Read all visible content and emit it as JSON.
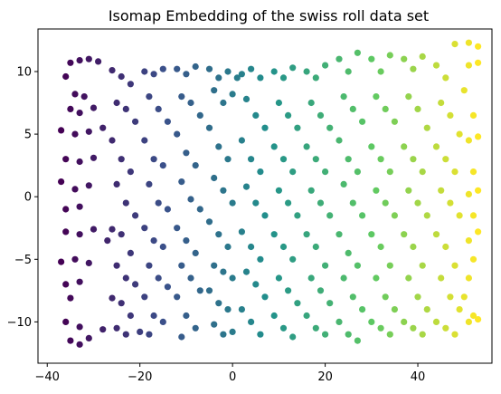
{
  "chart_data": {
    "type": "scatter",
    "title": "Isomap Embedding of the swiss roll data set",
    "xlabel": "",
    "ylabel": "",
    "xlim": [
      -42,
      56
    ],
    "ylim": [
      -13.3,
      13.4
    ],
    "xticks": [
      -40,
      -20,
      0,
      20,
      40
    ],
    "xtick_labels": [
      "−40",
      "−20",
      "0",
      "20",
      "40"
    ],
    "yticks": [
      -10,
      -5,
      0,
      5,
      10
    ],
    "ytick_labels": [
      "−10",
      "−5",
      "0",
      "5",
      "10"
    ],
    "grid": false,
    "legend": "none",
    "colormap": "viridis",
    "color_by": "x",
    "marker_color_range": [
      "#440154",
      "#3b528b",
      "#21918c",
      "#5ec962",
      "#fde725"
    ],
    "series": [
      {
        "points": [
          [
            -35,
            10.7
          ],
          [
            -33,
            10.9
          ],
          [
            -31,
            11.0
          ],
          [
            -29,
            10.8
          ],
          [
            -36,
            9.6
          ],
          [
            -34,
            8.2
          ],
          [
            -32,
            8.0
          ],
          [
            -35,
            7.0
          ],
          [
            -33,
            6.7
          ],
          [
            -30,
            7.1
          ],
          [
            -37,
            5.3
          ],
          [
            -34,
            5.0
          ],
          [
            -31,
            5.2
          ],
          [
            -36,
            3.0
          ],
          [
            -33,
            2.8
          ],
          [
            -30,
            3.1
          ],
          [
            -37,
            1.2
          ],
          [
            -34,
            0.6
          ],
          [
            -31,
            0.9
          ],
          [
            -36,
            -1.0
          ],
          [
            -33,
            -0.8
          ],
          [
            -36,
            -2.8
          ],
          [
            -33,
            -3.0
          ],
          [
            -30,
            -2.6
          ],
          [
            -37,
            -5.2
          ],
          [
            -34,
            -5.0
          ],
          [
            -31,
            -5.3
          ],
          [
            -36,
            -7.0
          ],
          [
            -33,
            -6.8
          ],
          [
            -35,
            -8.1
          ],
          [
            -36,
            -10.0
          ],
          [
            -33,
            -10.4
          ],
          [
            -35,
            -11.5
          ],
          [
            -33,
            -11.8
          ],
          [
            -31,
            -11.3
          ],
          [
            -28,
            -10.6
          ],
          [
            -28,
            5.5
          ],
          [
            -27,
            -3.5
          ],
          [
            -26,
            10.1
          ],
          [
            -24,
            9.6
          ],
          [
            -22,
            9.0
          ],
          [
            -25,
            7.5
          ],
          [
            -23,
            7.0
          ],
          [
            -21,
            6.0
          ],
          [
            -26,
            4.5
          ],
          [
            -24,
            3.0
          ],
          [
            -22,
            2.0
          ],
          [
            -25,
            1.0
          ],
          [
            -23,
            -0.5
          ],
          [
            -21,
            -1.5
          ],
          [
            -26,
            -2.6
          ],
          [
            -24,
            -3.0
          ],
          [
            -22,
            -4.5
          ],
          [
            -25,
            -5.5
          ],
          [
            -23,
            -6.5
          ],
          [
            -21,
            -7.0
          ],
          [
            -26,
            -8.1
          ],
          [
            -24,
            -8.5
          ],
          [
            -22,
            -9.5
          ],
          [
            -25,
            -10.5
          ],
          [
            -23,
            -11.0
          ],
          [
            -20,
            -10.8
          ],
          [
            -19,
            10.0
          ],
          [
            -17,
            9.8
          ],
          [
            -15,
            10.2
          ],
          [
            -18,
            8.0
          ],
          [
            -16,
            7.0
          ],
          [
            -14,
            6.0
          ],
          [
            -19,
            4.5
          ],
          [
            -17,
            3.0
          ],
          [
            -15,
            2.5
          ],
          [
            -18,
            1.0
          ],
          [
            -16,
            -0.5
          ],
          [
            -14,
            -1.0
          ],
          [
            -19,
            -2.5
          ],
          [
            -17,
            -3.5
          ],
          [
            -15,
            -4.0
          ],
          [
            -18,
            -5.5
          ],
          [
            -16,
            -6.5
          ],
          [
            -14,
            -7.2
          ],
          [
            -19,
            -8.0
          ],
          [
            -17,
            -9.5
          ],
          [
            -15,
            -10.0
          ],
          [
            -18,
            -11.0
          ],
          [
            -12,
            10.2
          ],
          [
            -10,
            9.8
          ],
          [
            -8,
            10.4
          ],
          [
            -11,
            8.0
          ],
          [
            -9,
            7.5
          ],
          [
            -7,
            6.5
          ],
          [
            -12,
            5.0
          ],
          [
            -10,
            3.5
          ],
          [
            -8,
            2.5
          ],
          [
            -11,
            1.2
          ],
          [
            -9,
            -0.2
          ],
          [
            -7,
            -1.0
          ],
          [
            -12,
            -2.5
          ],
          [
            -10,
            -3.5
          ],
          [
            -8,
            -4.5
          ],
          [
            -11,
            -5.5
          ],
          [
            -9,
            -6.5
          ],
          [
            -7,
            -7.5
          ],
          [
            -12,
            -8.0
          ],
          [
            -10,
            -9.5
          ],
          [
            -8,
            -10.5
          ],
          [
            -11,
            -11.2
          ],
          [
            -5,
            10.2
          ],
          [
            -3,
            9.5
          ],
          [
            -1,
            10.0
          ],
          [
            -4,
            8.5
          ],
          [
            -2,
            7.5
          ],
          [
            0,
            8.2
          ],
          [
            1,
            9.5
          ],
          [
            -5,
            5.5
          ],
          [
            -3,
            4.0
          ],
          [
            -1,
            3.0
          ],
          [
            -4,
            1.5
          ],
          [
            -2,
            0.5
          ],
          [
            0,
            -0.5
          ],
          [
            -5,
            -2.0
          ],
          [
            -3,
            -3.0
          ],
          [
            -1,
            -4.0
          ],
          [
            -4,
            -5.5
          ],
          [
            -2,
            -6.0
          ],
          [
            0,
            -6.5
          ],
          [
            -5,
            -7.5
          ],
          [
            -3,
            -8.5
          ],
          [
            -1,
            -9.0
          ],
          [
            -4,
            -10.2
          ],
          [
            -2,
            -11.0
          ],
          [
            0,
            -10.8
          ],
          [
            2,
            9.8
          ],
          [
            4,
            10.2
          ],
          [
            6,
            9.5
          ],
          [
            3,
            7.8
          ],
          [
            5,
            6.5
          ],
          [
            7,
            5.5
          ],
          [
            2,
            4.5
          ],
          [
            4,
            3.0
          ],
          [
            6,
            2.0
          ],
          [
            3,
            0.8
          ],
          [
            5,
            -0.5
          ],
          [
            7,
            -1.5
          ],
          [
            2,
            -2.8
          ],
          [
            4,
            -4.0
          ],
          [
            6,
            -5.0
          ],
          [
            3,
            -6.0
          ],
          [
            5,
            -7.0
          ],
          [
            7,
            -8.0
          ],
          [
            2,
            -9.0
          ],
          [
            4,
            -10.0
          ],
          [
            6,
            -11.0
          ],
          [
            9,
            10.0
          ],
          [
            11,
            9.5
          ],
          [
            13,
            10.3
          ],
          [
            10,
            7.5
          ],
          [
            12,
            6.5
          ],
          [
            14,
            5.5
          ],
          [
            9,
            4.0
          ],
          [
            11,
            3.0
          ],
          [
            13,
            2.0
          ],
          [
            10,
            0.5
          ],
          [
            12,
            -0.5
          ],
          [
            14,
            -1.5
          ],
          [
            9,
            -3.0
          ],
          [
            11,
            -4.0
          ],
          [
            13,
            -5.0
          ],
          [
            10,
            -6.5
          ],
          [
            12,
            -7.5
          ],
          [
            14,
            -8.5
          ],
          [
            9,
            -9.5
          ],
          [
            11,
            -10.5
          ],
          [
            13,
            -11.2
          ],
          [
            16,
            10.0
          ],
          [
            18,
            9.5
          ],
          [
            20,
            10.5
          ],
          [
            17,
            7.5
          ],
          [
            19,
            6.5
          ],
          [
            21,
            5.5
          ],
          [
            16,
            4.0
          ],
          [
            18,
            3.0
          ],
          [
            20,
            2.0
          ],
          [
            17,
            0.5
          ],
          [
            19,
            -0.5
          ],
          [
            21,
            -1.5
          ],
          [
            16,
            -3.0
          ],
          [
            18,
            -4.0
          ],
          [
            20,
            -5.5
          ],
          [
            17,
            -6.5
          ],
          [
            19,
            -7.5
          ],
          [
            21,
            -8.5
          ],
          [
            16,
            -9.5
          ],
          [
            18,
            -10.5
          ],
          [
            20,
            -11.0
          ],
          [
            23,
            11.0
          ],
          [
            25,
            10.0
          ],
          [
            27,
            11.5
          ],
          [
            24,
            8.0
          ],
          [
            26,
            7.0
          ],
          [
            28,
            6.0
          ],
          [
            23,
            4.5
          ],
          [
            25,
            3.0
          ],
          [
            27,
            2.0
          ],
          [
            24,
            1.0
          ],
          [
            26,
            -0.5
          ],
          [
            28,
            -1.5
          ],
          [
            23,
            -3.0
          ],
          [
            25,
            -4.5
          ],
          [
            27,
            -5.5
          ],
          [
            24,
            -6.5
          ],
          [
            26,
            -8.0
          ],
          [
            28,
            -9.0
          ],
          [
            23,
            -10.0
          ],
          [
            25,
            -11.0
          ],
          [
            27,
            -11.5
          ],
          [
            30,
            11.0
          ],
          [
            32,
            10.0
          ],
          [
            34,
            11.3
          ],
          [
            31,
            8.0
          ],
          [
            33,
            7.0
          ],
          [
            35,
            6.0
          ],
          [
            30,
            4.0
          ],
          [
            32,
            3.0
          ],
          [
            34,
            2.0
          ],
          [
            31,
            0.5
          ],
          [
            33,
            -0.5
          ],
          [
            35,
            -1.5
          ],
          [
            30,
            -3.0
          ],
          [
            32,
            -4.0
          ],
          [
            34,
            -5.5
          ],
          [
            31,
            -6.5
          ],
          [
            33,
            -8.0
          ],
          [
            35,
            -9.0
          ],
          [
            30,
            -10.0
          ],
          [
            32,
            -10.5
          ],
          [
            34,
            -11.0
          ],
          [
            37,
            11.0
          ],
          [
            39,
            10.2
          ],
          [
            41,
            11.2
          ],
          [
            38,
            8.0
          ],
          [
            40,
            7.0
          ],
          [
            42,
            5.5
          ],
          [
            37,
            4.0
          ],
          [
            39,
            3.0
          ],
          [
            41,
            2.0
          ],
          [
            38,
            0.5
          ],
          [
            40,
            -0.5
          ],
          [
            42,
            -1.5
          ],
          [
            37,
            -3.0
          ],
          [
            39,
            -4.0
          ],
          [
            41,
            -5.5
          ],
          [
            38,
            -6.5
          ],
          [
            40,
            -8.0
          ],
          [
            42,
            -9.0
          ],
          [
            37,
            -10.0
          ],
          [
            39,
            -10.5
          ],
          [
            41,
            -11.0
          ],
          [
            44,
            10.5
          ],
          [
            46,
            9.5
          ],
          [
            48,
            12.2
          ],
          [
            45,
            7.5
          ],
          [
            47,
            6.5
          ],
          [
            49,
            5.0
          ],
          [
            44,
            4.0
          ],
          [
            46,
            3.0
          ],
          [
            48,
            2.0
          ],
          [
            45,
            0.5
          ],
          [
            47,
            -0.5
          ],
          [
            49,
            -1.5
          ],
          [
            44,
            -3.0
          ],
          [
            46,
            -4.0
          ],
          [
            48,
            -5.5
          ],
          [
            45,
            -6.5
          ],
          [
            47,
            -8.0
          ],
          [
            49,
            -9.0
          ],
          [
            44,
            -10.0
          ],
          [
            46,
            -10.5
          ],
          [
            48,
            -11.0
          ],
          [
            51,
            12.3
          ],
          [
            53,
            12.0
          ],
          [
            51,
            10.5
          ],
          [
            53,
            10.7
          ],
          [
            50,
            8.5
          ],
          [
            52,
            6.5
          ],
          [
            51,
            4.5
          ],
          [
            53,
            4.8
          ],
          [
            52,
            2.0
          ],
          [
            51,
            0.2
          ],
          [
            53,
            0.5
          ],
          [
            52,
            -1.5
          ],
          [
            51,
            -3.5
          ],
          [
            53,
            -2.8
          ],
          [
            52,
            -5.0
          ],
          [
            51,
            -6.5
          ],
          [
            50,
            -8.0
          ],
          [
            52,
            -9.5
          ],
          [
            51,
            -10.0
          ],
          [
            53,
            -9.8
          ]
        ]
      }
    ]
  }
}
